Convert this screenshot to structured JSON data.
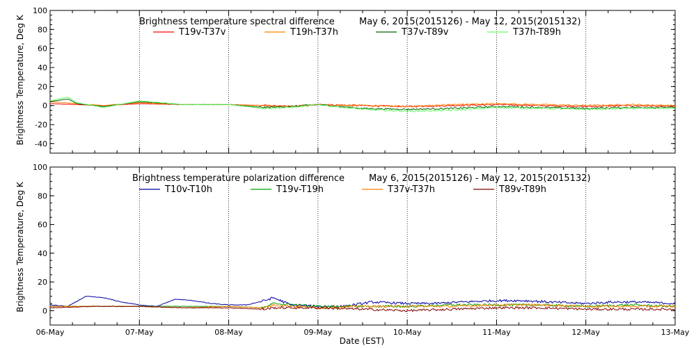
{
  "chart_data": [
    {
      "type": "line",
      "title": "Brightness temperature spectral difference",
      "date_range": "May  6, 2015(2015126) - May 12, 2015(2015132)",
      "ylabel": "Brightness Temperature, Deg K",
      "ylim": [
        -50,
        100
      ],
      "yticks": [
        -40,
        -20,
        0,
        20,
        40,
        60,
        80,
        100
      ],
      "xlim": [
        "06-May",
        "13-May"
      ],
      "grid": "vertical dotted at day boundaries",
      "legend_position": "top",
      "series": [
        {
          "name": "T19v-T37v",
          "color": "#ff0000",
          "x": [
            0,
            0.3,
            0.6,
            1.0,
            1.5,
            2.0,
            2.4,
            2.7,
            3.0,
            3.5,
            4.0,
            4.5,
            5.0,
            5.5,
            6.0,
            6.5,
            7.0
          ],
          "values": [
            2,
            1,
            0,
            2,
            1,
            1,
            0,
            -1,
            1,
            0,
            -1,
            0,
            1,
            0,
            -1,
            0,
            -1
          ]
        },
        {
          "name": "T19h-T37h",
          "color": "#ff8000",
          "x": [
            0,
            0.3,
            0.6,
            1.0,
            1.5,
            2.0,
            2.4,
            2.7,
            3.0,
            3.5,
            4.0,
            4.5,
            5.0,
            5.5,
            6.0,
            6.5,
            7.0
          ],
          "values": [
            4,
            2,
            0,
            3,
            1,
            1,
            0,
            -1,
            1,
            0,
            -1,
            1,
            2,
            1,
            0,
            1,
            0
          ]
        },
        {
          "name": "T37v-T89v",
          "color": "#006400",
          "x": [
            0,
            0.2,
            0.3,
            0.6,
            1.0,
            1.5,
            2.0,
            2.4,
            2.7,
            3.0,
            3.5,
            4.0,
            4.5,
            5.0,
            5.5,
            6.0,
            6.5,
            7.0
          ],
          "values": [
            4,
            7,
            2,
            -1,
            4,
            1,
            1,
            -2,
            -1,
            1,
            -3,
            -4,
            -3,
            -1,
            -2,
            -3,
            -2,
            -2
          ]
        },
        {
          "name": "T37h-T89h",
          "color": "#66ff66",
          "x": [
            0,
            0.2,
            0.3,
            0.6,
            1.0,
            1.5,
            2.0,
            2.4,
            2.7,
            3.0,
            3.5,
            4.0,
            4.5,
            5.0,
            5.5,
            6.0,
            6.5,
            7.0
          ],
          "values": [
            5,
            9,
            3,
            -2,
            5,
            1,
            1,
            -3,
            -2,
            1,
            -4,
            -6,
            -5,
            -2,
            -3,
            -4,
            -3,
            -3
          ]
        }
      ]
    },
    {
      "type": "line",
      "title": "Brightness temperature polarization difference",
      "date_range": "May  6, 2015(2015126) - May 12, 2015(2015132)",
      "xlabel": "Date (EST)",
      "ylabel": "Brightness Temperature, Deg K",
      "ylim": [
        -10,
        100
      ],
      "yticks": [
        0,
        20,
        40,
        60,
        80,
        100
      ],
      "xlim": [
        "06-May",
        "13-May"
      ],
      "xticks": [
        "06-May",
        "07-May",
        "08-May",
        "09-May",
        "10-May",
        "11-May",
        "12-May",
        "13-May"
      ],
      "grid": "vertical dotted at day boundaries",
      "legend_position": "top",
      "series": [
        {
          "name": "T10v-T10h",
          "color": "#0000a0",
          "x": [
            0,
            0.2,
            0.4,
            0.6,
            0.8,
            1.0,
            1.2,
            1.4,
            1.6,
            1.8,
            2.0,
            2.2,
            2.4,
            2.5,
            2.7,
            3.0,
            3.3,
            3.6,
            4.0,
            4.3,
            4.6,
            5.0,
            5.3,
            5.6,
            6.0,
            6.3,
            6.6,
            7.0
          ],
          "values": [
            4,
            3,
            10,
            9,
            6,
            4,
            3,
            8,
            7,
            5,
            4,
            4,
            7,
            9,
            4,
            3,
            3,
            6,
            5,
            5,
            6,
            7,
            7,
            6,
            5,
            6,
            6,
            5
          ]
        },
        {
          "name": "T19v-T19h",
          "color": "#00a000",
          "x": [
            0,
            0.5,
            1.0,
            1.5,
            2.0,
            2.4,
            2.5,
            3.0,
            3.5,
            4.0,
            4.5,
            5.0,
            5.5,
            6.0,
            6.5,
            7.0
          ],
          "values": [
            3,
            3,
            3,
            3,
            3,
            2,
            5,
            3,
            3,
            3,
            4,
            4,
            4,
            3,
            4,
            3
          ]
        },
        {
          "name": "T37v-T37h",
          "color": "#ff8000",
          "x": [
            0,
            0.5,
            1.0,
            1.5,
            2.0,
            2.4,
            2.5,
            3.0,
            3.5,
            4.0,
            4.5,
            5.0,
            5.5,
            6.0,
            6.5,
            7.0
          ],
          "values": [
            3,
            3,
            3,
            2,
            3,
            2,
            4,
            2,
            3,
            3,
            3,
            4,
            4,
            3,
            3,
            3
          ]
        },
        {
          "name": "T89v-T89h",
          "color": "#800000",
          "x": [
            0,
            0.5,
            1.0,
            1.5,
            2.0,
            2.4,
            2.5,
            3.0,
            3.5,
            4.0,
            4.5,
            5.0,
            5.5,
            6.0,
            6.5,
            7.0
          ],
          "values": [
            2,
            3,
            3,
            2,
            2,
            1,
            2,
            2,
            1,
            0,
            1,
            2,
            2,
            1,
            1,
            1
          ]
        }
      ]
    }
  ]
}
